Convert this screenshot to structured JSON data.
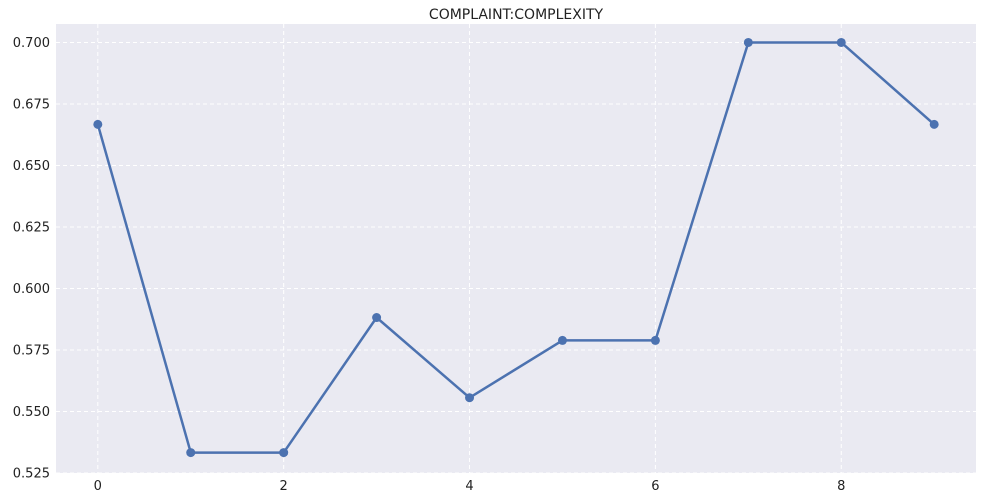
{
  "chart_data": {
    "type": "line",
    "title": "COMPLAINT:COMPLEXITY",
    "xlabel": "",
    "ylabel": "",
    "x": [
      0,
      1,
      2,
      3,
      4,
      5,
      6,
      7,
      8,
      9
    ],
    "series": [
      {
        "values": [
          0.6667,
          0.5333,
          0.5333,
          0.5882,
          0.5556,
          0.5789,
          0.5789,
          0.7,
          0.7,
          0.6667
        ]
      }
    ],
    "xlim": [
      -0.45,
      9.45
    ],
    "ylim": [
      0.525,
      0.7075
    ],
    "xticks": [
      0,
      2,
      4,
      6,
      8
    ],
    "yticks": [
      0.525,
      0.55,
      0.575,
      0.6,
      0.625,
      0.65,
      0.675,
      0.7
    ],
    "xtick_labels": [
      "0",
      "2",
      "4",
      "6",
      "8"
    ],
    "ytick_labels": [
      "0.525",
      "0.550",
      "0.575",
      "0.600",
      "0.625",
      "0.650",
      "0.675",
      "0.700"
    ],
    "grid": true,
    "legend": "none",
    "colors": {
      "line": "#4c72b0",
      "plot_background": "#eaeaf2",
      "grid": "#ffffff"
    }
  }
}
